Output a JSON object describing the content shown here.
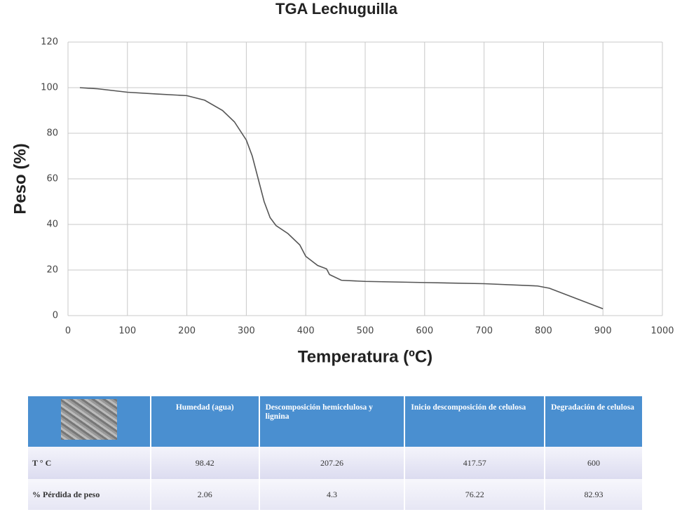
{
  "chart_data": {
    "type": "line",
    "title": "TGA Lechuguilla",
    "x_label": "Temperatura (ºC)",
    "y_label": "Peso  (%)",
    "x": [
      20,
      50,
      100,
      150,
      200,
      230,
      260,
      280,
      300,
      310,
      320,
      330,
      340,
      350,
      370,
      390,
      400,
      420,
      435,
      440,
      460,
      500,
      600,
      700,
      790,
      810,
      850,
      900
    ],
    "values": [
      100,
      99.5,
      98,
      97.2,
      96.5,
      94.5,
      90,
      85,
      77,
      70,
      60,
      50,
      43,
      39.5,
      36,
      31,
      26,
      22,
      20.5,
      18,
      15.5,
      15,
      14.5,
      14,
      13,
      12,
      8,
      3
    ],
    "color": "#555555",
    "xlim": [
      0,
      1000
    ],
    "xticks": [
      0,
      100,
      200,
      300,
      400,
      500,
      600,
      700,
      800,
      900,
      1000
    ],
    "ylim": [
      0,
      120
    ],
    "yticks": [
      0,
      20,
      40,
      60,
      80,
      100,
      120
    ],
    "grid": true
  },
  "table": {
    "header": [
      "Humedad (agua)",
      "Descomposición hemicelulosa y lignina",
      "Inicio descomposición de celulosa",
      "Degradación de celulosa"
    ],
    "rows": [
      [
        "T ° C",
        "98.42",
        "207.26",
        "417.57",
        "600"
      ],
      [
        "% Pérdida de peso",
        "2.06",
        "4.3",
        "76.22",
        "82.93"
      ]
    ]
  }
}
